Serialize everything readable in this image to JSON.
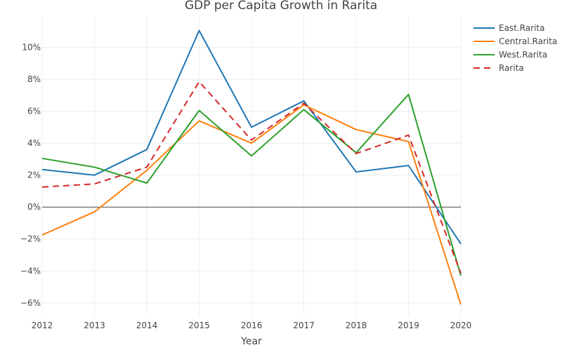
{
  "chart_data": {
    "type": "line",
    "title": "GDP per Capita Growth in Rarita",
    "xlabel": "Year",
    "ylabel": "",
    "x": [
      2012,
      2013,
      2014,
      2015,
      2016,
      2017,
      2018,
      2019,
      2020
    ],
    "x_tick_labels": [
      "2012",
      "2013",
      "2014",
      "2015",
      "2016",
      "2017",
      "2018",
      "2019",
      "2020"
    ],
    "y_tick_values": [
      -6,
      -4,
      -2,
      0,
      2,
      4,
      6,
      8,
      10
    ],
    "y_tick_labels": [
      "−6%",
      "−4%",
      "−2%",
      "0%",
      "2%",
      "4%",
      "6%",
      "8%",
      "10%"
    ],
    "ylim": [
      -6.8,
      12
    ],
    "xlim": [
      2012,
      2020
    ],
    "grid": true,
    "legend_position": "top-right",
    "series": [
      {
        "name": "East.Rarita",
        "color": "#1f77b4",
        "dash": "solid",
        "values": [
          2.35,
          2.0,
          3.6,
          11.05,
          5.0,
          6.65,
          2.2,
          2.6,
          -2.3
        ]
      },
      {
        "name": "Central.Rarita",
        "color": "#ff7f0e",
        "dash": "solid",
        "values": [
          -1.75,
          -0.3,
          2.3,
          5.4,
          4.0,
          6.4,
          4.85,
          4.1,
          -6.1
        ]
      },
      {
        "name": "West.Rarita",
        "color": "#2ca02c",
        "dash": "solid",
        "values": [
          3.05,
          2.5,
          1.5,
          6.05,
          3.2,
          6.1,
          3.4,
          7.05,
          -4.3
        ]
      },
      {
        "name": "Rarita",
        "color": "#d62728",
        "dash": "dash",
        "values": [
          1.25,
          1.45,
          2.5,
          7.85,
          4.2,
          6.5,
          3.35,
          4.5,
          -4.15
        ]
      }
    ]
  }
}
